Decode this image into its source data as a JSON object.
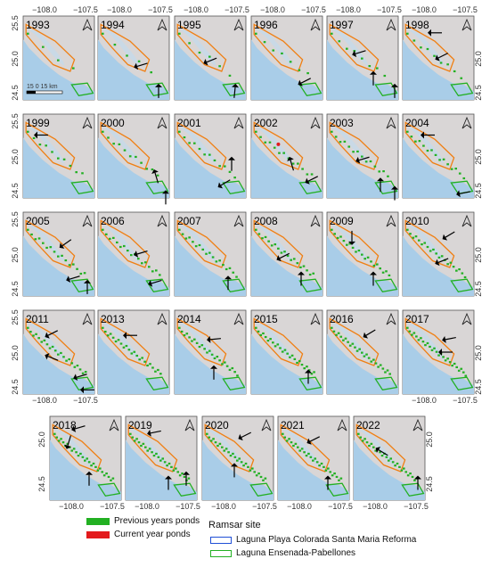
{
  "figure": {
    "panels": [
      {
        "year": "1993"
      },
      {
        "year": "1994"
      },
      {
        "year": "1995"
      },
      {
        "year": "1996"
      },
      {
        "year": "1997"
      },
      {
        "year": "1998"
      },
      {
        "year": "1999"
      },
      {
        "year": "2000"
      },
      {
        "year": "2001"
      },
      {
        "year": "2002"
      },
      {
        "year": "2003"
      },
      {
        "year": "2004"
      },
      {
        "year": "2005"
      },
      {
        "year": "2006"
      },
      {
        "year": "2007"
      },
      {
        "year": "2008"
      },
      {
        "year": "2009"
      },
      {
        "year": "2010"
      },
      {
        "year": "2011"
      },
      {
        "year": "2013"
      },
      {
        "year": "2014"
      },
      {
        "year": "2015"
      },
      {
        "year": "2016"
      },
      {
        "year": "2017"
      },
      {
        "year": "2018"
      },
      {
        "year": "2019"
      },
      {
        "year": "2020"
      },
      {
        "year": "2021"
      },
      {
        "year": "2022"
      }
    ],
    "axis_labels": {
      "lon_left": "−108.0",
      "lon_right": "−107.5",
      "lat_top": "25.5",
      "lat_mid": "25.0",
      "lat_bottom": "24.5"
    },
    "scale_bar_label": "15  0  15 km",
    "north_symbol": "north-arrow"
  },
  "legend": {
    "previous_label": "Previous years ponds",
    "current_label": "Current year ponds",
    "ramsar_title": "Ramsar site",
    "site1_label": "Laguna Playa Colorada Santa Maria Reforma",
    "site2_label": "Laguna Ensenada-Pabellones"
  },
  "colors": {
    "land": "#d9d6d6",
    "water": "#a9cde8",
    "previous_ponds": "#22b022",
    "current_ponds": "#e31a1c",
    "site1_outline": "#1f4fd6",
    "site2_outline": "#22b022",
    "orange_outline": "#f07f12"
  }
}
